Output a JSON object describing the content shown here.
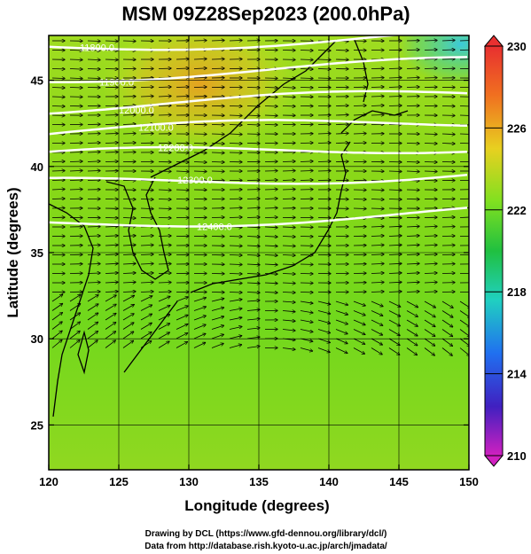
{
  "title": "MSM 09Z28Sep2023 (200.0hPa)",
  "x_axis": {
    "label": "Longitude (degrees)",
    "ticks": [
      "120",
      "125",
      "130",
      "135",
      "140",
      "145",
      "150"
    ],
    "range": [
      120,
      150
    ]
  },
  "y_axis": {
    "label": "Latitude  (degrees)",
    "ticks": [
      "25",
      "30",
      "35",
      "40",
      "45"
    ],
    "range": [
      22.4,
      47.6
    ]
  },
  "colorbar": {
    "min": 210,
    "max": 230,
    "ticks": [
      "230",
      "226",
      "222",
      "218",
      "214",
      "210"
    ]
  },
  "contours": [
    {
      "label": "11800.0",
      "lat": 47.3
    },
    {
      "label": "11900.0",
      "lat": 45.6
    },
    {
      "label": "12000.0",
      "lat": 43.8
    },
    {
      "label": "12100.0",
      "lat": 42.3
    },
    {
      "label": "12200.0",
      "lat": 40.9
    },
    {
      "label": "12300.0",
      "lat": 39.3
    },
    {
      "label": "12400.0",
      "lat": 37.0
    }
  ],
  "footer": {
    "line1": "Drawing by DCL (https://www.gfd-dennou.org/library/dcl/)",
    "line2": "Data from http://database.rish.kyoto-u.ac.jp/arch/jmadata/"
  },
  "colors": {
    "warm": "#e8a020",
    "mid": "#7fd81c",
    "cool": "#30c8f0",
    "contour": "#ffffff"
  }
}
